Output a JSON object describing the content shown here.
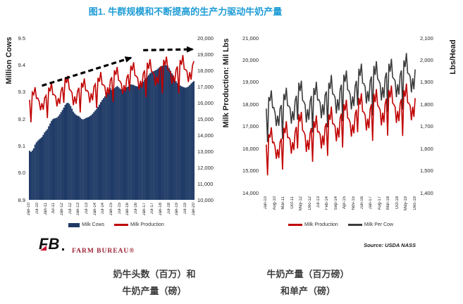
{
  "title": "图1. 牛群规模和不断提高的生产力驱动牛奶产量",
  "title_color": "#1e9cd6",
  "source": "Source:  USDA NASS",
  "logo": {
    "mark": "farm-bureau-fb-mark",
    "text": "FARM BUREAU®"
  },
  "footer": {
    "left_line1": "奶牛头数（百万）和",
    "left_line2": "牛奶产量（磅）",
    "right_line1": "牛奶产量（百万磅）",
    "right_line2": "和单产（磅）"
  },
  "colors": {
    "bar_navy": "#1f3a66",
    "line_red": "#c00000",
    "line_gray": "#3b3b3b",
    "annotation_black": "#000000"
  },
  "chart_data": [
    {
      "type": "bar+line",
      "ylabel_left": "Million Cows",
      "ylabel_right": "Milk Production: Mil Lbs",
      "ylim_left": [
        8.9,
        9.5
      ],
      "ylim_right": [
        10000,
        20000
      ],
      "yticks_left": [
        "9.5",
        "9.4",
        "9.3",
        "9.2",
        "9.1",
        "9.0",
        "8.9"
      ],
      "yticks_right": [
        "20,000",
        "19,000",
        "18,000",
        "17,000",
        "16,000",
        "15,000",
        "14,000",
        "13,000",
        "12,000",
        "11,000",
        "10,000"
      ],
      "x_months": 121,
      "xtick_every": 6,
      "xtick_labels": [
        "Jan-10",
        "Jul-10",
        "Jan-11",
        "Jul-11",
        "Jan-12",
        "Jul-12",
        "Jan-13",
        "Jul-13",
        "Jan-14",
        "Jul-14",
        "Jan-15",
        "Jul-15",
        "Jan-16",
        "Jul-16",
        "Jan-17",
        "Jul-17",
        "Jan-18",
        "Jul-18",
        "Jan-19",
        "Jul-19",
        "Jan-20"
      ],
      "grid": false,
      "legend_position": "bottom",
      "legend": [
        {
          "label": "Milk Cows",
          "swatch": "bar",
          "color": "#1f3a66"
        },
        {
          "label": "Milk Production",
          "swatch": "line",
          "color": "#c00000"
        }
      ],
      "series": [
        {
          "name": "Milk Cows",
          "type": "bar",
          "axis": "left",
          "color": "#1f3a66",
          "values": [
            9.082,
            9.078,
            9.083,
            9.091,
            9.105,
            9.113,
            9.119,
            9.124,
            9.128,
            9.133,
            9.141,
            9.15,
            9.156,
            9.162,
            9.173,
            9.183,
            9.193,
            9.199,
            9.202,
            9.203,
            9.205,
            9.21,
            9.217,
            9.225,
            9.233,
            9.242,
            9.252,
            9.258,
            9.26,
            9.256,
            9.248,
            9.238,
            9.227,
            9.22,
            9.215,
            9.212,
            9.21,
            9.205,
            9.2,
            9.198,
            9.2,
            9.203,
            9.205,
            9.207,
            9.21,
            9.214,
            9.219,
            9.225,
            9.231,
            9.237,
            9.245,
            9.253,
            9.262,
            9.27,
            9.277,
            9.284,
            9.291,
            9.298,
            9.306,
            9.314,
            9.307,
            9.31,
            9.314,
            9.318,
            9.322,
            9.318,
            9.313,
            9.31,
            9.308,
            9.31,
            9.313,
            9.317,
            9.32,
            9.324,
            9.328,
            9.327,
            9.326,
            9.323,
            9.321,
            9.321,
            9.323,
            9.327,
            9.332,
            9.338,
            9.344,
            9.35,
            9.357,
            9.363,
            9.369,
            9.373,
            9.376,
            9.378,
            9.38,
            9.383,
            9.387,
            9.392,
            9.395,
            9.397,
            9.399,
            9.4,
            9.399,
            9.395,
            9.388,
            9.379,
            9.369,
            9.358,
            9.348,
            9.34,
            9.333,
            9.328,
            9.324,
            9.321,
            9.319,
            9.317,
            9.316,
            9.317,
            9.32,
            9.325,
            9.331,
            9.336,
            9.34
          ]
        },
        {
          "name": "Milk Production",
          "type": "line",
          "axis": "right",
          "color": "#c00000",
          "values": [
            16180,
            14790,
            16650,
            16500,
            16960,
            16270,
            16290,
            16080,
            15540,
            15970,
            15570,
            16300,
            16450,
            15050,
            16940,
            16700,
            17240,
            16500,
            16500,
            16410,
            15770,
            16290,
            15930,
            16740,
            16980,
            16000,
            17560,
            17220,
            17660,
            16830,
            16760,
            16620,
            15850,
            16390,
            15940,
            16700,
            16930,
            15400,
            17240,
            16940,
            17500,
            16750,
            16760,
            16650,
            16000,
            16590,
            16150,
            16990,
            17150,
            15670,
            17550,
            17300,
            17900,
            17120,
            17110,
            17000,
            16330,
            16950,
            16500,
            17370,
            17580,
            16050,
            18010,
            17720,
            18210,
            17390,
            17340,
            17180,
            16540,
            17090,
            16690,
            17530,
            17760,
            16740,
            18290,
            17990,
            18500,
            17680,
            17650,
            17520,
            16820,
            17350,
            16920,
            17780,
            18000,
            16350,
            18470,
            18100,
            18690,
            17950,
            17880,
            17750,
            17050,
            17620,
            17180,
            18030,
            18260,
            16580,
            18650,
            18310,
            18850,
            18060,
            17990,
            17880,
            17160,
            17700,
            17240,
            18040,
            18240,
            16570,
            18640,
            18350,
            18940,
            18080,
            18050,
            17940,
            17280,
            17890,
            17430,
            18280,
            18570
          ]
        }
      ],
      "annotations": [
        {
          "type": "dashed-arrow",
          "axis": "right",
          "from": {
            "i": 9,
            "v": 17050
          },
          "to": {
            "i": 74,
            "v": 18780
          }
        },
        {
          "type": "dashed-arrow",
          "axis": "right",
          "from": {
            "i": 83,
            "v": 19250
          },
          "to": {
            "i": 119,
            "v": 19300
          }
        }
      ]
    },
    {
      "type": "line",
      "ylabel_left": "Milk Production: Mil Lbs",
      "ylabel_right": "Lbs/Head",
      "ylim_left": [
        14000,
        21000
      ],
      "ylim_right": [
        1400,
        2100
      ],
      "yticks_left": [
        "21,000",
        "20,000",
        "19,000",
        "18,000",
        "17,000",
        "16,000",
        "15,000",
        "14,000"
      ],
      "yticks_right": [
        "2,100",
        "2,000",
        "1,900",
        "1,800",
        "1,700",
        "1,600",
        "1,500",
        "1,400"
      ],
      "x_months": 120,
      "xtick_every": 7,
      "xtick_labels": [
        "Jan-10",
        "Aug-10",
        "Mar-11",
        "Oct-11",
        "May-12",
        "Dec-12",
        "Jul-13",
        "Feb-14",
        "Sep-14",
        "Apr-15",
        "Nov-15",
        "Jun-16",
        "Jan-17",
        "Aug-17",
        "Mar-18",
        "Oct-18",
        "May-19",
        "Dec-19"
      ],
      "grid": false,
      "legend_position": "bottom",
      "legend": [
        {
          "label": "Milk Production",
          "swatch": "line",
          "color": "#c00000"
        },
        {
          "label": "Milk Per Cow",
          "swatch": "line",
          "color": "#3b3b3b"
        }
      ],
      "series": [
        {
          "name": "Milk Production",
          "type": "line",
          "axis": "left",
          "color": "#c00000",
          "values": [
            16180,
            14790,
            16650,
            16500,
            16960,
            16270,
            16290,
            16080,
            15540,
            15970,
            15570,
            16300,
            16450,
            15050,
            16940,
            16700,
            17240,
            16500,
            16500,
            16410,
            15770,
            16290,
            15930,
            16740,
            16980,
            16000,
            17560,
            17220,
            17660,
            16830,
            16760,
            16620,
            15850,
            16390,
            15940,
            16700,
            16930,
            15400,
            17240,
            16940,
            17500,
            16750,
            16760,
            16650,
            16000,
            16590,
            16150,
            16990,
            17150,
            15670,
            17550,
            17300,
            17900,
            17120,
            17110,
            17000,
            16330,
            16950,
            16500,
            17370,
            17580,
            16050,
            18010,
            17720,
            18210,
            17390,
            17340,
            17180,
            16540,
            17090,
            16690,
            17530,
            17760,
            16740,
            18290,
            17990,
            18500,
            17680,
            17650,
            17520,
            16820,
            17350,
            16920,
            17780,
            18000,
            16350,
            18470,
            18100,
            18690,
            17950,
            17880,
            17750,
            17050,
            17620,
            17180,
            18030,
            18260,
            16580,
            18650,
            18310,
            18850,
            18060,
            17990,
            17880,
            17160,
            17700,
            17240,
            18040,
            18240,
            16570,
            18640,
            18350,
            18940,
            18080,
            18050,
            17940,
            17280,
            17890,
            17430,
            18280
          ]
        },
        {
          "name": "Milk Per Cow",
          "type": "line",
          "axis": "right",
          "color": "#3b3b3b",
          "values": [
            1781,
            1629,
            1833,
            1815,
            1863,
            1785,
            1786,
            1762,
            1702,
            1749,
            1703,
            1781,
            1797,
            1643,
            1847,
            1819,
            1875,
            1794,
            1793,
            1783,
            1713,
            1769,
            1728,
            1815,
            1839,
            1731,
            1898,
            1860,
            1907,
            1818,
            1812,
            1799,
            1718,
            1778,
            1730,
            1813,
            1838,
            1673,
            1874,
            1842,
            1902,
            1820,
            1821,
            1808,
            1737,
            1800,
            1752,
            1842,
            1858,
            1696,
            1898,
            1870,
            1933,
            1847,
            1844,
            1831,
            1758,
            1823,
            1773,
            1865,
            1889,
            1724,
            1934,
            1902,
            1953,
            1866,
            1862,
            1845,
            1777,
            1836,
            1792,
            1882,
            1906,
            1795,
            1961,
            1929,
            1984,
            1896,
            1894,
            1880,
            1804,
            1860,
            1813,
            1904,
            1926,
            1749,
            1974,
            1933,
            1995,
            1915,
            1907,
            1893,
            1818,
            1878,
            1830,
            1920,
            1944,
            1764,
            1984,
            1948,
            2006,
            1922,
            1916,
            1906,
            1832,
            1891,
            1844,
            1932,
            1954,
            1776,
            1999,
            1969,
            2032,
            1941,
            1938,
            1926,
            1854,
            1918,
            1868,
            1958
          ]
        }
      ],
      "annotations": []
    }
  ]
}
